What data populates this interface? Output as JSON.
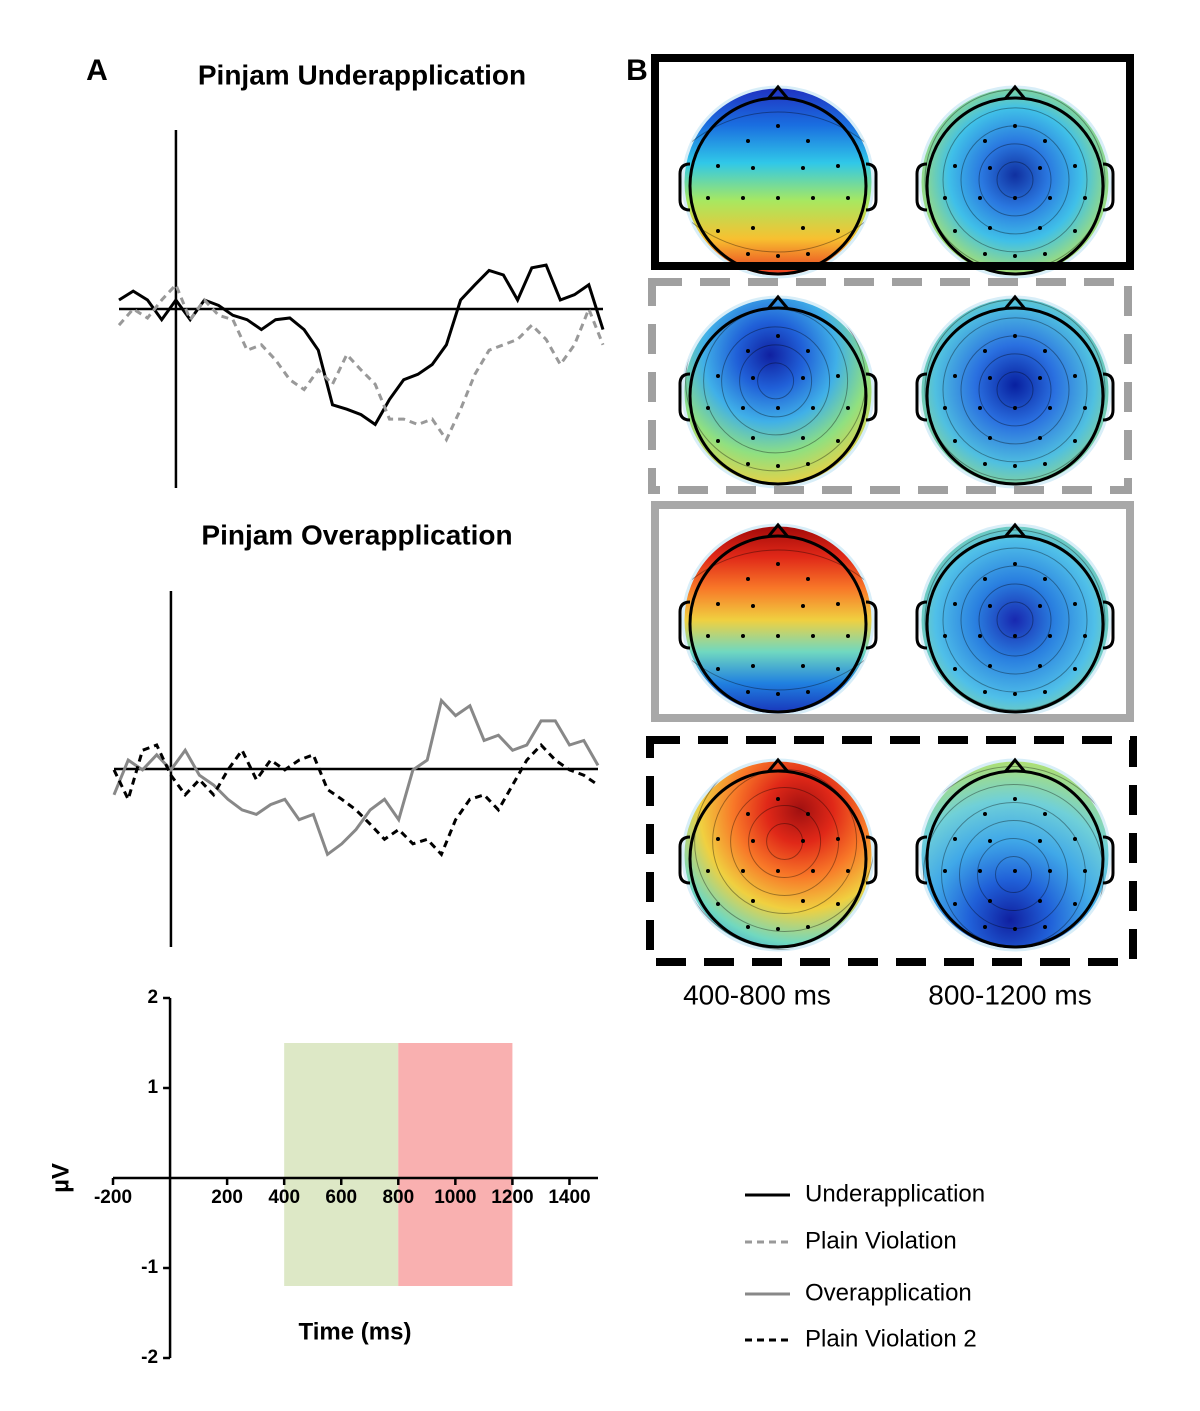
{
  "panel_labels": [
    "A",
    "B"
  ],
  "topomap_labels": [
    "400-800 ms",
    "800-1200 ms"
  ],
  "chart_data": [
    {
      "type": "line",
      "title": "Pinjam Underapplication",
      "xlim": [
        -200,
        1500
      ],
      "ylim": [
        -2,
        2
      ],
      "x": [
        -200,
        -150,
        -100,
        -50,
        0,
        50,
        100,
        150,
        200,
        250,
        300,
        350,
        400,
        450,
        500,
        550,
        600,
        650,
        700,
        750,
        800,
        850,
        900,
        950,
        1000,
        1050,
        1100,
        1150,
        1200,
        1250,
        1300,
        1350,
        1400,
        1450,
        1500
      ],
      "series": [
        {
          "name": "Underapplication",
          "color": "#000000",
          "dashed": false,
          "values": [
            0.1,
            0.2,
            0.1,
            -0.12,
            0.1,
            -0.12,
            0.1,
            0.04,
            -0.07,
            -0.12,
            -0.23,
            -0.12,
            -0.1,
            -0.23,
            -0.46,
            -1.07,
            -1.12,
            -1.18,
            -1.29,
            -1.01,
            -0.79,
            -0.73,
            -0.62,
            -0.4,
            0.1,
            0.27,
            0.43,
            0.38,
            0.1,
            0.46,
            0.49,
            0.1,
            0.16,
            0.27,
            -0.23
          ]
        },
        {
          "name": "Plain Violation",
          "color": "#999999",
          "dashed": true,
          "values": [
            -0.18,
            0,
            -0.1,
            0.1,
            0.27,
            -0.12,
            0.1,
            -0.07,
            -0.12,
            -0.46,
            -0.4,
            -0.57,
            -0.79,
            -0.9,
            -0.68,
            -0.84,
            -0.51,
            -0.68,
            -0.84,
            -1.23,
            -1.23,
            -1.29,
            -1.23,
            -1.46,
            -1.12,
            -0.73,
            -0.46,
            -0.4,
            -0.34,
            -0.18,
            -0.34,
            -0.62,
            -0.4,
            0,
            -0.4
          ]
        }
      ]
    },
    {
      "type": "line",
      "title": "Pinjam Overapplication",
      "xlim": [
        -200,
        1500
      ],
      "ylim": [
        -2,
        2
      ],
      "x": [
        -200,
        -150,
        -100,
        -50,
        0,
        50,
        100,
        150,
        200,
        250,
        300,
        350,
        400,
        450,
        500,
        550,
        600,
        650,
        700,
        750,
        800,
        850,
        900,
        950,
        1000,
        1050,
        1100,
        1150,
        1200,
        1250,
        1300,
        1350,
        1400,
        1450,
        1500
      ],
      "series": [
        {
          "name": "Overapplication",
          "color": "#888888",
          "dashed": false,
          "values": [
            -0.29,
            0.1,
            -0.01,
            0.16,
            -0.01,
            0.21,
            -0.07,
            -0.18,
            -0.34,
            -0.46,
            -0.51,
            -0.4,
            -0.34,
            -0.57,
            -0.51,
            -0.96,
            -0.84,
            -0.68,
            -0.46,
            -0.34,
            -0.57,
            -0.01,
            0.1,
            0.77,
            0.6,
            0.71,
            0.32,
            0.38,
            0.21,
            0.27,
            0.54,
            0.54,
            0.27,
            0.32,
            0.04
          ]
        },
        {
          "name": "Plain Violation 2",
          "color": "#000000",
          "dashed": true,
          "values": [
            -0.01,
            -0.34,
            0.21,
            0.27,
            -0.07,
            -0.29,
            -0.12,
            -0.29,
            -0.01,
            0.21,
            -0.12,
            0.1,
            -0.01,
            0.1,
            0.16,
            -0.23,
            -0.34,
            -0.46,
            -0.62,
            -0.79,
            -0.68,
            -0.84,
            -0.79,
            -0.96,
            -0.57,
            -0.34,
            -0.29,
            -0.46,
            -0.18,
            0.1,
            0.27,
            0.1,
            -0.01,
            -0.07,
            -0.18
          ]
        }
      ]
    },
    {
      "type": "axes",
      "xlabel": "Time (ms)",
      "ylabel": "µV",
      "xlim": [
        -200,
        1500
      ],
      "ylim": [
        -2,
        2
      ],
      "xticks": [
        -200,
        200,
        400,
        600,
        800,
        1000,
        1200,
        1400
      ],
      "yticks": [
        2,
        1,
        -1,
        -2
      ],
      "shaded": [
        {
          "x": [
            400,
            800
          ],
          "y": [
            -1.2,
            1.5
          ],
          "color": "#d9e5c0"
        },
        {
          "x": [
            800,
            1200
          ],
          "y": [
            -1.2,
            1.5
          ],
          "color": "#f8a7a7"
        }
      ]
    }
  ]
}
